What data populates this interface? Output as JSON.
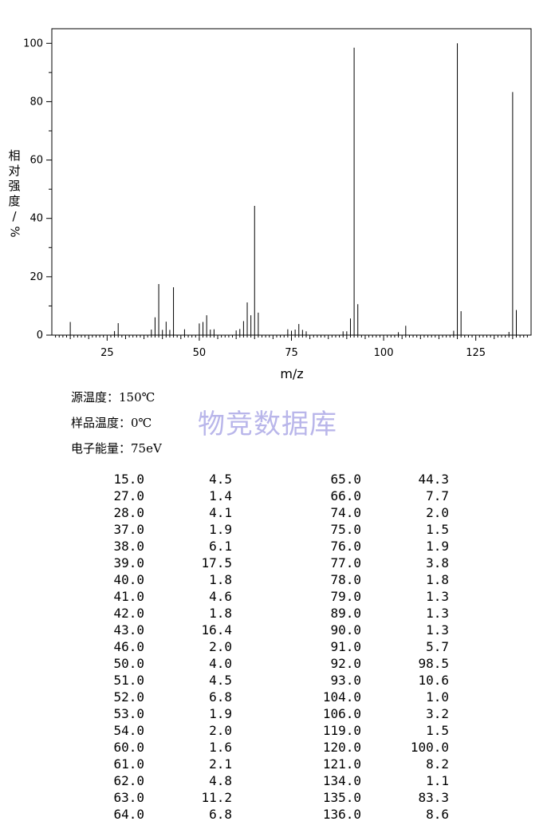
{
  "chart_data": {
    "type": "bar",
    "xlabel": "m/z",
    "ylabel": "相对强度/%",
    "xlim": [
      10,
      140
    ],
    "ylim": [
      0,
      105
    ],
    "x_ticks": [
      25,
      50,
      75,
      100,
      125
    ],
    "y_ticks": [
      0,
      20,
      40,
      60,
      80,
      100
    ],
    "x": [
      15,
      27,
      28,
      37,
      38,
      39,
      40,
      41,
      42,
      43,
      46,
      50,
      51,
      52,
      53,
      54,
      60,
      61,
      62,
      63,
      64,
      65,
      66,
      74,
      75,
      76,
      77,
      78,
      79,
      89,
      90,
      91,
      92,
      93,
      104,
      106,
      119,
      120,
      121,
      134,
      135,
      136
    ],
    "values": [
      4.5,
      1.4,
      4.1,
      1.9,
      6.1,
      17.5,
      1.8,
      4.6,
      1.8,
      16.4,
      2.0,
      4.0,
      4.5,
      6.8,
      1.9,
      2.0,
      1.6,
      2.1,
      4.8,
      11.2,
      6.8,
      44.3,
      7.7,
      2.0,
      1.5,
      1.9,
      3.8,
      1.8,
      1.3,
      1.3,
      1.3,
      5.7,
      98.5,
      10.6,
      1.0,
      3.2,
      1.5,
      100.0,
      8.2,
      1.1,
      83.3,
      8.6
    ]
  },
  "ylabel_chars": [
    "相",
    "对",
    "强",
    "度"
  ],
  "ylabel_tail": "%",
  "xlabel_text": "m/z",
  "meta": {
    "source_temp": "源温度：150℃",
    "sample_temp": "样品温度：0℃",
    "electron_energy": "电子能量：75eV"
  },
  "watermark": "物竞数据库",
  "table": {
    "left": [
      [
        "15.0",
        "4.5"
      ],
      [
        "27.0",
        "1.4"
      ],
      [
        "28.0",
        "4.1"
      ],
      [
        "37.0",
        "1.9"
      ],
      [
        "38.0",
        "6.1"
      ],
      [
        "39.0",
        "17.5"
      ],
      [
        "40.0",
        "1.8"
      ],
      [
        "41.0",
        "4.6"
      ],
      [
        "42.0",
        "1.8"
      ],
      [
        "43.0",
        "16.4"
      ],
      [
        "46.0",
        "2.0"
      ],
      [
        "50.0",
        "4.0"
      ],
      [
        "51.0",
        "4.5"
      ],
      [
        "52.0",
        "6.8"
      ],
      [
        "53.0",
        "1.9"
      ],
      [
        "54.0",
        "2.0"
      ],
      [
        "60.0",
        "1.6"
      ],
      [
        "61.0",
        "2.1"
      ],
      [
        "62.0",
        "4.8"
      ],
      [
        "63.0",
        "11.2"
      ],
      [
        "64.0",
        "6.8"
      ]
    ],
    "right": [
      [
        "65.0",
        "44.3"
      ],
      [
        "66.0",
        "7.7"
      ],
      [
        "74.0",
        "2.0"
      ],
      [
        "75.0",
        "1.5"
      ],
      [
        "76.0",
        "1.9"
      ],
      [
        "77.0",
        "3.8"
      ],
      [
        "78.0",
        "1.8"
      ],
      [
        "79.0",
        "1.3"
      ],
      [
        "89.0",
        "1.3"
      ],
      [
        "90.0",
        "1.3"
      ],
      [
        "91.0",
        "5.7"
      ],
      [
        "92.0",
        "98.5"
      ],
      [
        "93.0",
        "10.6"
      ],
      [
        "104.0",
        "1.0"
      ],
      [
        "106.0",
        "3.2"
      ],
      [
        "119.0",
        "1.5"
      ],
      [
        "120.0",
        "100.0"
      ],
      [
        "121.0",
        "8.2"
      ],
      [
        "134.0",
        "1.1"
      ],
      [
        "135.0",
        "83.3"
      ],
      [
        "136.0",
        "8.6"
      ]
    ]
  }
}
